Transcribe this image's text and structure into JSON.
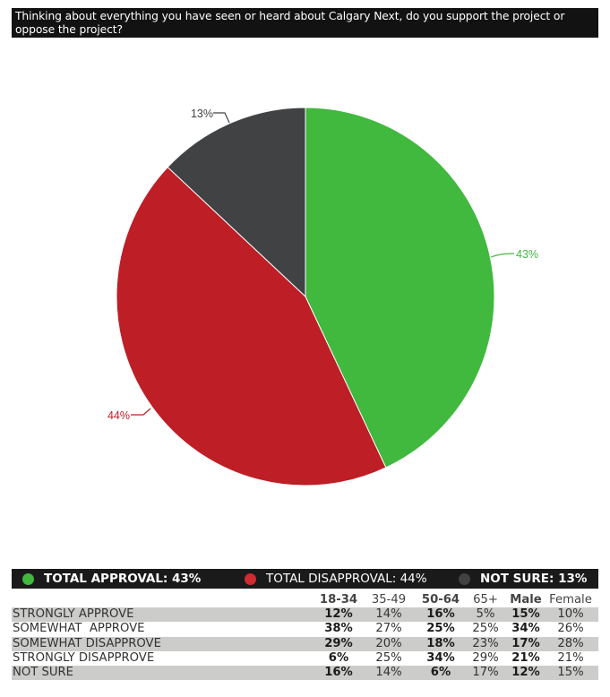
{
  "title": "Thinking about everything you have seen or heard about Calgary Next, do you support the project or oppose the project?",
  "colors": {
    "approval": "#41b83e",
    "disapproval": "#be1e26",
    "not_sure": "#414244",
    "title_bg": "#121212",
    "legend_bg": "#1a1a1a",
    "row_shade": "#cccccb"
  },
  "legend": [
    {
      "label": "TOTAL APPROVAL: 43%",
      "color": "#41b83e",
      "bold": true
    },
    {
      "label": "TOTAL DISAPPROVAL: 44%",
      "color": "#d12a2f",
      "bold": false
    },
    {
      "label": "NOT SURE: 13%",
      "color": "#414244",
      "bold": true
    }
  ],
  "table": {
    "columns": [
      "18-34",
      "35-49",
      "50-64",
      "65+",
      "Male",
      "Female"
    ],
    "bold_columns": [
      0,
      2,
      4
    ],
    "rows": [
      {
        "label": "STRONGLY APPROVE",
        "values": [
          "12%",
          "14%",
          "16%",
          "5%",
          "15%",
          "10%"
        ]
      },
      {
        "label": "SOMEWHAT  APPROVE",
        "values": [
          "38%",
          "27%",
          "25%",
          "25%",
          "34%",
          "26%"
        ]
      },
      {
        "label": "SOMEWHAT DISAPPROVE",
        "values": [
          "29%",
          "20%",
          "18%",
          "23%",
          "17%",
          "28%"
        ]
      },
      {
        "label": "STRONGLY DISAPPROVE",
        "values": [
          "6%",
          "25%",
          "34%",
          "29%",
          "21%",
          "21%"
        ]
      },
      {
        "label": "NOT SURE",
        "values": [
          "16%",
          "14%",
          "6%",
          "17%",
          "12%",
          "15%"
        ]
      }
    ]
  },
  "chart_data": {
    "type": "pie",
    "title": "Thinking about everything you have seen or heard about Calgary Next, do you support the project or oppose the project?",
    "categories": [
      "Total Approval",
      "Total Disapproval",
      "Not Sure"
    ],
    "values": [
      43,
      44,
      13
    ],
    "labels": [
      "43%",
      "44%",
      "13%"
    ],
    "colors": [
      "#41b83e",
      "#be1e26",
      "#414244"
    ],
    "start_angle": "12 o'clock",
    "direction": "clockwise",
    "legend_position": "bottom",
    "breakdown_table": {
      "columns": [
        "18-34",
        "35-49",
        "50-64",
        "65+",
        "Male",
        "Female"
      ],
      "rows": {
        "STRONGLY APPROVE": [
          12,
          14,
          16,
          5,
          15,
          10
        ],
        "SOMEWHAT APPROVE": [
          38,
          27,
          25,
          25,
          34,
          26
        ],
        "SOMEWHAT DISAPPROVE": [
          29,
          20,
          18,
          23,
          17,
          28
        ],
        "STRONGLY DISAPPROVE": [
          6,
          25,
          34,
          29,
          21,
          21
        ],
        "NOT SURE": [
          16,
          14,
          6,
          17,
          12,
          15
        ]
      }
    }
  }
}
